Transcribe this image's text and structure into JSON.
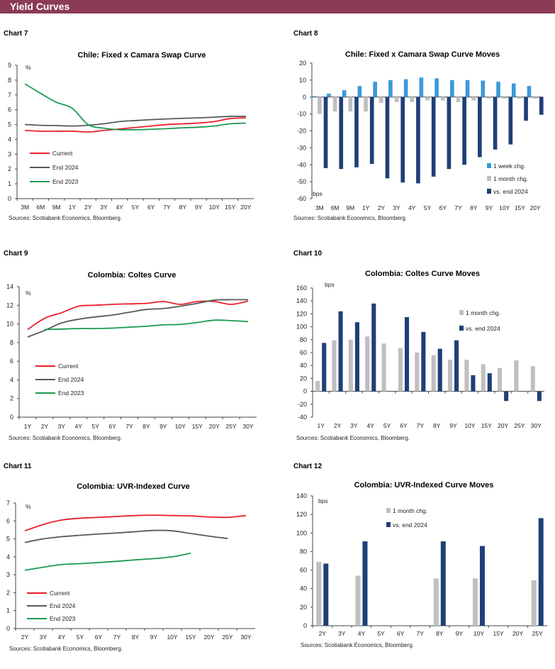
{
  "header": {
    "title": "Yield Curves"
  },
  "colors": {
    "header": "#8C3B55",
    "current": "#E8202A",
    "end2024": "#595959",
    "end2023": "#1A9A50",
    "week": "#3A9AD9",
    "month": "#BFBFBF",
    "vsEnd": "#1F3F77"
  },
  "chart_data": [
    {
      "label": "Chart 7",
      "type": "line",
      "title": "Chile: Fixed x Camara Swap Curve",
      "unit": "%",
      "categories": [
        "3M",
        "6M",
        "9M",
        "1Y",
        "2Y",
        "3Y",
        "4Y",
        "5Y",
        "6Y",
        "7Y",
        "8Y",
        "9Y",
        "10Y",
        "15Y",
        "20Y"
      ],
      "ylim": [
        0,
        9
      ],
      "yticks": [
        0,
        1,
        2,
        3,
        4,
        5,
        6,
        7,
        8,
        9
      ],
      "legend": "bottom-left",
      "grid": false,
      "series": [
        {
          "name": "Current",
          "color": "#E8202A",
          "values": [
            4.6,
            4.55,
            4.55,
            4.55,
            4.5,
            4.6,
            4.7,
            4.8,
            4.9,
            5.0,
            5.05,
            5.1,
            5.2,
            5.4,
            5.45
          ]
        },
        {
          "name": "End 2024",
          "color": "#595959",
          "values": [
            5.0,
            4.95,
            4.93,
            4.9,
            4.95,
            5.05,
            5.2,
            5.27,
            5.33,
            5.38,
            5.42,
            5.45,
            5.5,
            5.55,
            5.55
          ]
        },
        {
          "name": "End 2023",
          "color": "#1A9A50",
          "values": [
            7.75,
            7.1,
            6.5,
            6.1,
            5.0,
            4.75,
            4.65,
            4.65,
            4.68,
            4.72,
            4.78,
            4.82,
            4.9,
            5.05,
            5.1
          ]
        }
      ],
      "source": "Sources: Scotiabank Economics, Bloomberg."
    },
    {
      "label": "Chart 8",
      "type": "bar",
      "title": "Chile: Fixed x Camara Swap Curve Moves",
      "unit": "bps",
      "categories": [
        "3M",
        "6M",
        "9M",
        "1Y",
        "2Y",
        "3Y",
        "4Y",
        "5Y",
        "6Y",
        "7Y",
        "8Y",
        "9Y",
        "10Y",
        "15Y",
        "20Y"
      ],
      "ylim": [
        -60,
        20
      ],
      "yticks": [
        -60,
        -50,
        -40,
        -30,
        -20,
        -10,
        0,
        10,
        20
      ],
      "legend": "bottom-right",
      "grid": false,
      "series": [
        {
          "name": "1 week chg.",
          "color": "#3A9AD9",
          "values": [
            0.5,
            2,
            4,
            6.5,
            9,
            10,
            10.5,
            11.5,
            11,
            10,
            10,
            9.7,
            9,
            8,
            6.5
          ]
        },
        {
          "name": "1 month chg.",
          "color": "#BFBFBF",
          "values": [
            -10,
            -8.5,
            -8.5,
            -8.5,
            -3.5,
            -3,
            -3,
            -2,
            -2,
            -3,
            -2,
            -1,
            -1,
            -1,
            -1
          ]
        },
        {
          "name": "vs. end 2024",
          "color": "#1F3F77",
          "values": [
            -42,
            -42.5,
            -41.5,
            -39.5,
            -48,
            -50.5,
            -51,
            -47,
            -42.5,
            -40,
            -35.5,
            -31,
            -28,
            -14,
            -10.5
          ]
        }
      ],
      "source": "Sources: Scotiabank Economics, Bloomberg."
    },
    {
      "label": "Chart 9",
      "type": "line",
      "title": "Colombia: Coltes Curve",
      "unit": "%",
      "categories": [
        "1Y",
        "2Y",
        "3Y",
        "4Y",
        "5Y",
        "6Y",
        "7Y",
        "8Y",
        "9Y",
        "10Y",
        "15Y",
        "20Y",
        "25Y",
        "30Y"
      ],
      "ylim": [
        0,
        14
      ],
      "yticks": [
        0,
        2,
        4,
        6,
        8,
        10,
        12,
        14
      ],
      "legend": "bottom-left",
      "grid": false,
      "series": [
        {
          "name": "Current",
          "color": "#E8202A",
          "values": [
            9.4,
            10.6,
            11.2,
            11.9,
            12.0,
            12.1,
            12.15,
            12.2,
            12.4,
            12.1,
            12.4,
            12.4,
            12.1,
            12.45
          ]
        },
        {
          "name": "End 2024",
          "color": "#595959",
          "values": [
            8.6,
            9.3,
            10.1,
            10.5,
            10.75,
            10.95,
            11.25,
            11.55,
            11.65,
            11.9,
            12.2,
            12.55,
            12.6,
            12.6
          ]
        },
        {
          "name": "End 2023",
          "color": "#1A9A50",
          "values": [
            null,
            9.4,
            9.45,
            9.5,
            9.5,
            9.55,
            9.65,
            9.75,
            9.9,
            9.95,
            10.15,
            10.4,
            10.35,
            10.25
          ]
        }
      ],
      "source": "Sources: Scotiabank Economics, Bloomberg."
    },
    {
      "label": "Chart 10",
      "type": "bar",
      "title": "Colombia: Coltes Curve Moves",
      "unit": "bps",
      "categories": [
        "1Y",
        "2Y",
        "3Y",
        "4Y",
        "5Y",
        "6Y",
        "7Y",
        "8Y",
        "9Y",
        "10Y",
        "15Y",
        "20Y",
        "25Y",
        "30Y"
      ],
      "ylim": [
        -40,
        160
      ],
      "yticks": [
        -40,
        -20,
        0,
        20,
        40,
        60,
        80,
        100,
        120,
        140,
        160
      ],
      "legend": "top-right",
      "grid": false,
      "series": [
        {
          "name": "1 month chg.",
          "color": "#BFBFBF",
          "values": [
            16,
            79,
            80,
            85,
            74,
            67,
            60,
            56,
            49,
            49,
            42,
            36,
            48,
            39
          ]
        },
        {
          "name": "vs. end 2024",
          "color": "#1F3F77",
          "values": [
            75,
            124,
            107,
            136,
            null,
            115,
            92,
            66,
            79,
            25,
            28,
            -15,
            null,
            -15
          ]
        }
      ],
      "source": "Sources: Scotiabank Economics, Bloomberg."
    },
    {
      "label": "Chart 11",
      "type": "line",
      "title": "Colombia: UVR-Indexed Curve",
      "unit": "%",
      "categories": [
        "2Y",
        "3Y",
        "4Y",
        "5Y",
        "6Y",
        "7Y",
        "8Y",
        "9Y",
        "10Y",
        "15Y",
        "20Y",
        "25Y",
        "30Y"
      ],
      "ylim": [
        0,
        7
      ],
      "yticks": [
        0,
        1,
        2,
        3,
        4,
        5,
        6,
        7
      ],
      "legend": "bottom-left",
      "grid": false,
      "series": [
        {
          "name": "Current",
          "color": "#E8202A",
          "values": [
            5.45,
            5.8,
            6.05,
            6.15,
            6.2,
            6.25,
            6.3,
            6.32,
            6.3,
            6.28,
            6.22,
            6.2,
            6.3
          ]
        },
        {
          "name": "End 2024",
          "color": "#595959",
          "values": [
            4.8,
            5.0,
            5.12,
            5.2,
            5.27,
            5.33,
            5.4,
            5.47,
            5.45,
            5.3,
            5.15,
            5.02,
            null
          ]
        },
        {
          "name": "End 2023",
          "color": "#1A9A50",
          "values": [
            3.25,
            3.42,
            3.57,
            3.62,
            3.68,
            3.75,
            3.83,
            3.9,
            4.0,
            4.2,
            null,
            null,
            null
          ]
        }
      ],
      "source": "Sources: Scotiabank Economics, Bloomberg."
    },
    {
      "label": "Chart 12",
      "type": "bar",
      "title": "Colombia: UVR-Indexed Curve Moves",
      "unit": "bps",
      "categories": [
        "2Y",
        "3Y",
        "4Y",
        "5Y",
        "6Y",
        "7Y",
        "8Y",
        "9Y",
        "10Y",
        "15Y",
        "20Y",
        "25Y"
      ],
      "ylim": [
        0,
        140
      ],
      "yticks": [
        0,
        20,
        40,
        60,
        80,
        100,
        120,
        140
      ],
      "legend": "top-center",
      "grid": false,
      "series": [
        {
          "name": "1 month chg.",
          "color": "#BFBFBF",
          "values": [
            69,
            null,
            54,
            null,
            null,
            null,
            51,
            null,
            51,
            null,
            null,
            49
          ]
        },
        {
          "name": "vs. end 2024",
          "color": "#1F3F77",
          "values": [
            67,
            null,
            91,
            null,
            null,
            null,
            91,
            null,
            86,
            null,
            null,
            116
          ]
        }
      ],
      "source": "Sources: Scotiabank Economics, Bloomberg."
    }
  ]
}
